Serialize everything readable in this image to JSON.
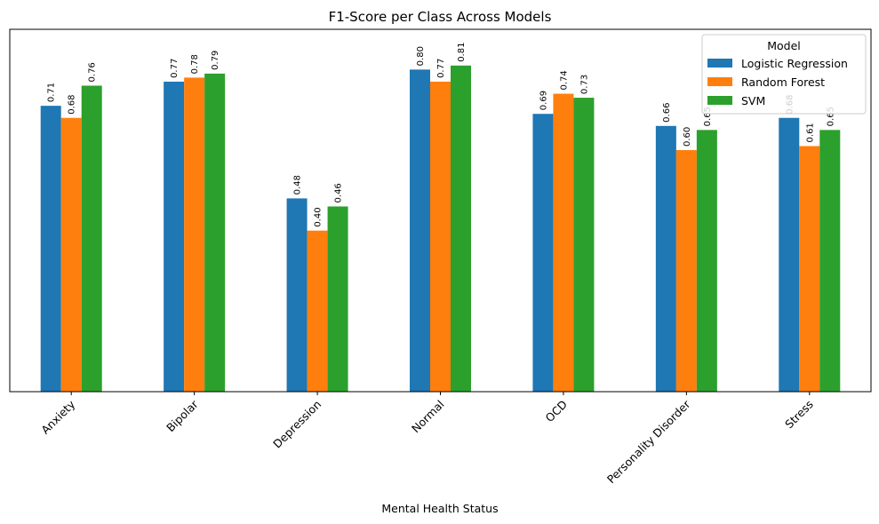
{
  "chart_data": {
    "type": "bar",
    "title": "F1-Score per Class Across Models",
    "xlabel": "Mental Health Status",
    "ylabel": "",
    "ylim": [
      0,
      0.9
    ],
    "yticks_visible": false,
    "grid": false,
    "legend": {
      "title": "Model",
      "placement": "top-right"
    },
    "categories": [
      "Anxiety",
      "Bipolar",
      "Depression",
      "Normal",
      "OCD",
      "Personality Disorder",
      "Stress"
    ],
    "series": [
      {
        "name": "Logistic Regression",
        "color": "#1f77b4",
        "values": [
          0.71,
          0.77,
          0.48,
          0.8,
          0.69,
          0.66,
          0.68
        ]
      },
      {
        "name": "Random Forest",
        "color": "#ff7f0e",
        "values": [
          0.68,
          0.78,
          0.4,
          0.77,
          0.74,
          0.6,
          0.61
        ]
      },
      {
        "name": "SVM",
        "color": "#2ca02c",
        "values": [
          0.76,
          0.79,
          0.46,
          0.81,
          0.73,
          0.65,
          0.65
        ]
      }
    ],
    "data_labels": [
      [
        "0.71",
        "0.77",
        "0.48",
        "0.80",
        "0.69",
        "0.66",
        "0.68"
      ],
      [
        "0.68",
        "0.78",
        "0.40",
        "0.77",
        "0.74",
        "0.60",
        "0.61"
      ],
      [
        "0.76",
        "0.79",
        "0.46",
        "0.81",
        "0.73",
        "0.65",
        "0.65"
      ]
    ]
  }
}
